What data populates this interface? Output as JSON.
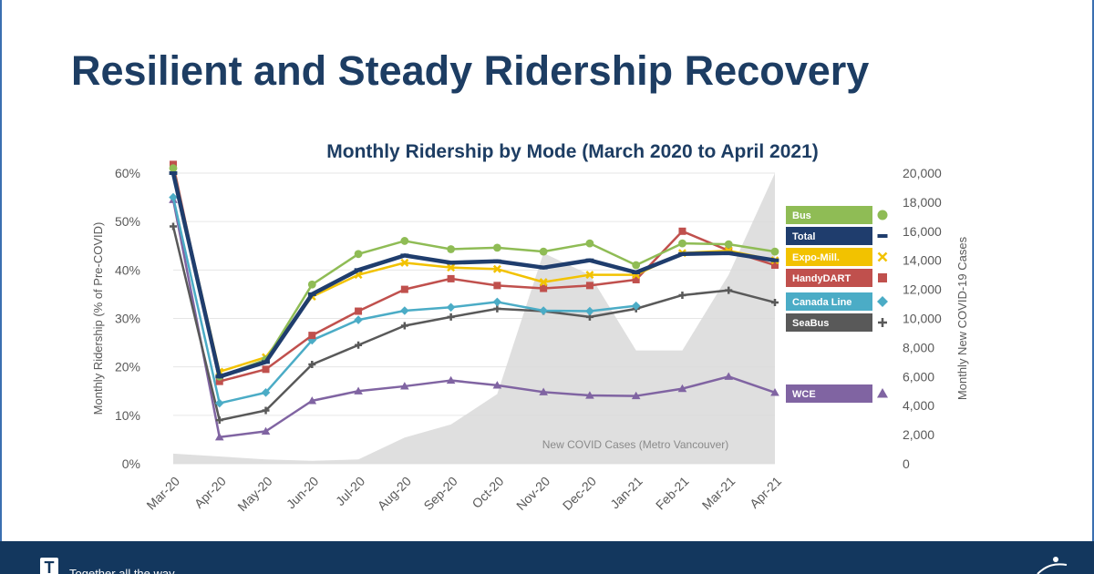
{
  "slide": {
    "title": "Resilient and Steady Ridership Recovery",
    "tagline": "Together all the way",
    "logo_letter": "T"
  },
  "colors": {
    "title": "#1d3d63",
    "footer": "#13375e"
  },
  "chart_data": {
    "type": "line",
    "title": "Monthly Ridership by Mode (March 2020 to April 2021)",
    "ylabel": "Monthly Ridership (% of Pre-COVID)",
    "y2label": "Monthly New COVID-19 Cases",
    "categories": [
      "Mar-20",
      "Apr-20",
      "May-20",
      "Jun-20",
      "Jul-20",
      "Aug-20",
      "Sep-20",
      "Oct-20",
      "Nov-20",
      "Dec-20",
      "Jan-21",
      "Feb-21",
      "Mar-21",
      "Apr-21"
    ],
    "ylim": [
      0,
      60
    ],
    "yticks": [
      "0%",
      "10%",
      "20%",
      "30%",
      "40%",
      "50%",
      "60%"
    ],
    "y2lim": [
      0,
      20000
    ],
    "y2ticks": [
      "0",
      "2,000",
      "4,000",
      "6,000",
      "8,000",
      "10,000",
      "12,000",
      "14,000",
      "16,000",
      "18,000",
      "20,000"
    ],
    "grid": true,
    "legend_position": "right",
    "series": [
      {
        "name": "Bus",
        "color": "#8fbc55",
        "marker": "circle",
        "values": [
          61,
          18,
          21.5,
          37,
          43.3,
          46,
          44.3,
          44.6,
          43.8,
          45.5,
          41,
          45.5,
          45.3,
          43.8
        ]
      },
      {
        "name": "Total",
        "color": "#1f3d6d",
        "marker": "dash",
        "values": [
          60,
          18,
          21,
          35,
          40,
          43,
          41.5,
          41.8,
          40.5,
          42,
          39.5,
          43.3,
          43.5,
          42
        ]
      },
      {
        "name": "Expo-Mill.",
        "color": "#f2c200",
        "marker": "x",
        "values": [
          60.5,
          19,
          22,
          34.5,
          39,
          41.5,
          40.5,
          40.2,
          37.5,
          39,
          39,
          43.5,
          44,
          42
        ]
      },
      {
        "name": "HandyDART",
        "color": "#c0504d",
        "marker": "square",
        "values": [
          61.8,
          17,
          19.5,
          26.5,
          31.5,
          36,
          38.2,
          36.8,
          36.2,
          36.8,
          38,
          48,
          44,
          41
        ]
      },
      {
        "name": "Canada Line",
        "color": "#4bacc6",
        "marker": "diamond",
        "values": [
          55,
          12.5,
          14.7,
          25.5,
          29.7,
          31.6,
          32.3,
          33.4,
          31.6,
          31.5,
          32.6,
          null,
          null,
          null
        ]
      },
      {
        "name": "SeaBus",
        "color": "#595959",
        "marker": "plus",
        "values": [
          49,
          9,
          11,
          20.5,
          24.5,
          28.5,
          30.3,
          32,
          31.5,
          30.3,
          32,
          34.8,
          35.8,
          33.3
        ]
      },
      {
        "name": "WCE",
        "color": "#8064a2",
        "marker": "triangle",
        "values": [
          54.5,
          5.5,
          6.7,
          13,
          15,
          16,
          17.2,
          16.2,
          14.8,
          14.1,
          14,
          15.5,
          18,
          14.7
        ]
      }
    ],
    "covid_cases": {
      "name": "New COVID Cases (Metro Vancouver)",
      "color": "#d9d9d9",
      "values": [
        700,
        500,
        300,
        200,
        300,
        1800,
        2700,
        4800,
        14500,
        13000,
        7800,
        7800,
        13000,
        20000
      ]
    }
  }
}
